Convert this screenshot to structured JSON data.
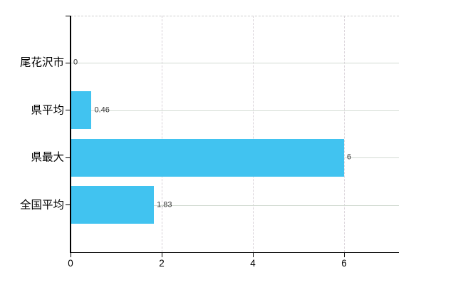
{
  "chart_data": {
    "type": "bar",
    "orientation": "horizontal",
    "title": "",
    "xlabel": "",
    "ylabel": "",
    "categories": [
      "尾花沢市",
      "県平均",
      "県最大",
      "全国平均"
    ],
    "values": [
      0,
      0.46,
      6,
      1.83
    ],
    "value_labels": [
      "0",
      "0.46",
      "6",
      "1.83"
    ],
    "x_ticks": [
      0,
      2,
      4,
      6
    ],
    "x_tick_labels": [
      "0",
      "2",
      "4",
      "6"
    ],
    "xlim": [
      0,
      7.2
    ],
    "grid": true,
    "legend": false,
    "colors": {
      "bar": "#41c3f0",
      "h_gridline": "#d3dbd3",
      "v_gridline": "#d7d0d7",
      "top_border": "#cdcdcd",
      "axis": "#000000",
      "category_label": "#000000",
      "value_label": "#333333",
      "background": "#ffffff"
    }
  }
}
